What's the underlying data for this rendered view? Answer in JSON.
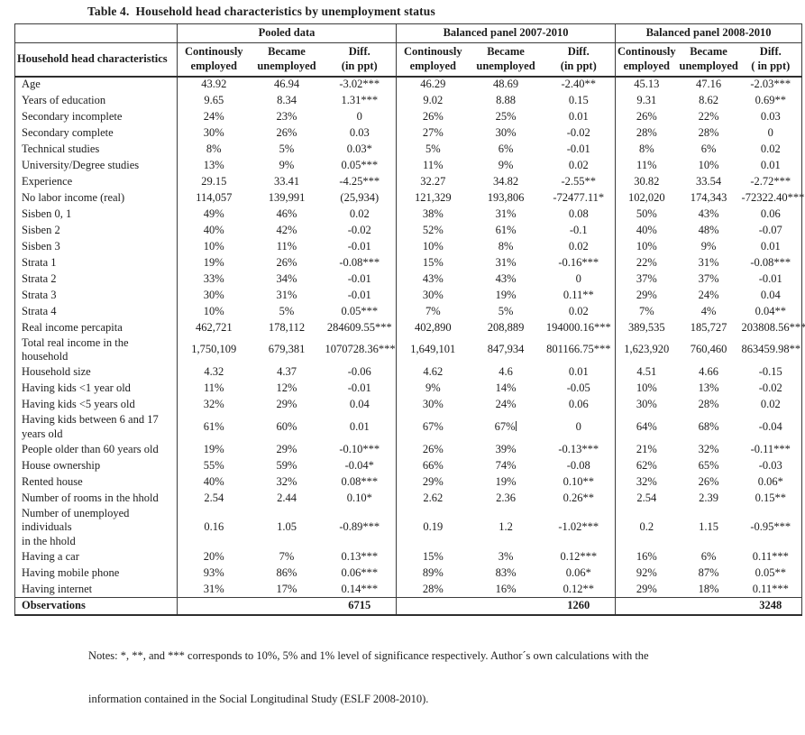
{
  "title": "Table 4.  Household head characteristics by unemployment status",
  "colors": {
    "background": "#ffffff",
    "text": "#1c1c1c",
    "border": "#3c3c3c"
  },
  "notes": [
    "Notes: *, **, and *** corresponds to 10%, 5% and 1% level of significance respectively. Author´s own calculations with the",
    "information contained in the Social Longitudinal Study (ESLF 2008-2010)."
  ],
  "table": {
    "row_header": "Household head characteristics",
    "panels": [
      {
        "label": "Pooled data",
        "columns": [
          "Continously\nemployed",
          "Became\nunemployed",
          "Diff.\n(in ppt)"
        ]
      },
      {
        "label": "Balanced panel 2007-2010",
        "columns": [
          "Continously\nemployed",
          "Became\nunemployed",
          "Diff.\n(in ppt)"
        ]
      },
      {
        "label": "Balanced panel 2008-2010",
        "columns": [
          "Continously\nemployed",
          "Became\nunemployed",
          "Diff.\n( in ppt)"
        ]
      }
    ],
    "rows": [
      {
        "label": "Age",
        "values": [
          "43.92",
          "46.94",
          "-3.02***",
          "46.29",
          "48.69",
          "-2.40**",
          "45.13",
          "47.16",
          "-2.03***"
        ]
      },
      {
        "label": "Years of education",
        "values": [
          "9.65",
          "8.34",
          "1.31***",
          "9.02",
          "8.88",
          "0.15",
          "9.31",
          "8.62",
          "0.69**"
        ]
      },
      {
        "label": "Secondary incomplete",
        "values": [
          "24%",
          "23%",
          "0",
          "26%",
          "25%",
          "0.01",
          "26%",
          "22%",
          "0.03"
        ]
      },
      {
        "label": "Secondary complete",
        "values": [
          "30%",
          "26%",
          "0.03",
          "27%",
          "30%",
          "-0.02",
          "28%",
          "28%",
          "0"
        ]
      },
      {
        "label": "Technical studies",
        "values": [
          "8%",
          "5%",
          "0.03*",
          "5%",
          "6%",
          "-0.01",
          "8%",
          "6%",
          "0.02"
        ]
      },
      {
        "label": "University/Degree studies",
        "values": [
          "13%",
          "9%",
          "0.05***",
          "11%",
          "9%",
          "0.02",
          "11%",
          "10%",
          "0.01"
        ]
      },
      {
        "label": "Experience",
        "values": [
          "29.15",
          "33.41",
          "-4.25***",
          "32.27",
          "34.82",
          "-2.55**",
          "30.82",
          "33.54",
          "-2.72***"
        ]
      },
      {
        "label": "No labor income (real)",
        "values": [
          "114,057",
          "139,991",
          "(25,934)",
          "121,329",
          "193,806",
          "-72477.11*",
          "102,020",
          "174,343",
          "-72322.40***"
        ]
      },
      {
        "label": "Sisben 0, 1",
        "values": [
          "49%",
          "46%",
          "0.02",
          "38%",
          "31%",
          "0.08",
          "50%",
          "43%",
          "0.06"
        ]
      },
      {
        "label": "Sisben 2",
        "values": [
          "40%",
          "42%",
          "-0.02",
          "52%",
          "61%",
          "-0.1",
          "40%",
          "48%",
          "-0.07"
        ]
      },
      {
        "label": "Sisben 3",
        "values": [
          "10%",
          "11%",
          "-0.01",
          "10%",
          "8%",
          "0.02",
          "10%",
          "9%",
          "0.01"
        ]
      },
      {
        "label": "Strata 1",
        "values": [
          "19%",
          "26%",
          "-0.08***",
          "15%",
          "31%",
          "-0.16***",
          "22%",
          "31%",
          "-0.08***"
        ]
      },
      {
        "label": "Strata 2",
        "values": [
          "33%",
          "34%",
          "-0.01",
          "43%",
          "43%",
          "0",
          "37%",
          "37%",
          "-0.01"
        ]
      },
      {
        "label": "Strata 3",
        "values": [
          "30%",
          "31%",
          "-0.01",
          "30%",
          "19%",
          "0.11**",
          "29%",
          "24%",
          "0.04"
        ]
      },
      {
        "label": "Strata 4",
        "values": [
          "10%",
          "5%",
          "0.05***",
          "7%",
          "5%",
          "0.02",
          "7%",
          "4%",
          "0.04**"
        ]
      },
      {
        "label": "Real income percapita",
        "values": [
          "462,721",
          "178,112",
          "284609.55***",
          "402,890",
          "208,889",
          "194000.16***",
          "389,535",
          "185,727",
          "203808.56***"
        ]
      },
      {
        "label": "Total real income in the\nhousehold",
        "values": [
          "1,750,109",
          "679,381",
          "1070728.36***",
          "1,649,101",
          "847,934",
          "801166.75***",
          "1,623,920",
          "760,460",
          "863459.98**"
        ]
      },
      {
        "label": "Household size",
        "values": [
          "4.32",
          "4.37",
          "-0.06",
          "4.62",
          "4.6",
          "0.01",
          "4.51",
          "4.66",
          "-0.15"
        ]
      },
      {
        "label": "Having kids <1 year old",
        "values": [
          "11%",
          "12%",
          "-0.01",
          "9%",
          "14%",
          "-0.05",
          "10%",
          "13%",
          "-0.02"
        ]
      },
      {
        "label": "Having kids <5 years old",
        "values": [
          "32%",
          "29%",
          "0.04",
          "30%",
          "24%",
          "0.06",
          "30%",
          "28%",
          "0.02"
        ]
      },
      {
        "label": "Having kids between 6 and 17\nyears old",
        "values": [
          "61%",
          "60%",
          "0.01",
          "67%",
          "67%",
          "0",
          "64%",
          "68%",
          "-0.04"
        ]
      },
      {
        "label": "People older than 60 years old",
        "values": [
          "19%",
          "29%",
          "-0.10***",
          "26%",
          "39%",
          "-0.13***",
          "21%",
          "32%",
          "-0.11***"
        ]
      },
      {
        "label": "House ownership",
        "values": [
          "55%",
          "59%",
          "-0.04*",
          "66%",
          "74%",
          "-0.08",
          "62%",
          "65%",
          "-0.03"
        ]
      },
      {
        "label": "Rented house",
        "values": [
          "40%",
          "32%",
          "0.08***",
          "29%",
          "19%",
          "0.10**",
          "32%",
          "26%",
          "0.06*"
        ]
      },
      {
        "label": "Number of rooms in the hhold",
        "values": [
          "2.54",
          "2.44",
          "0.10*",
          "2.62",
          "2.36",
          "0.26**",
          "2.54",
          "2.39",
          "0.15**"
        ]
      },
      {
        "label": "Number of unemployed\nindividuals\nin the hhold",
        "values": [
          "0.16",
          "1.05",
          "-0.89***",
          "0.19",
          "1.2",
          "-1.02***",
          "0.2",
          "1.15",
          "-0.95***"
        ]
      },
      {
        "label": "Having a car",
        "values": [
          "20%",
          "7%",
          "0.13***",
          "15%",
          "3%",
          "0.12***",
          "16%",
          "6%",
          "0.11***"
        ]
      },
      {
        "label": "Having mobile phone",
        "values": [
          "93%",
          "86%",
          "0.06***",
          "89%",
          "83%",
          "0.06*",
          "92%",
          "87%",
          "0.05**"
        ]
      },
      {
        "label": "Having internet",
        "values": [
          "31%",
          "17%",
          "0.14***",
          "28%",
          "16%",
          "0.12**",
          "29%",
          "18%",
          "0.11***"
        ]
      }
    ],
    "observations": {
      "label": "Observations",
      "values": [
        "6715",
        "1260",
        "3248"
      ]
    },
    "cursor": {
      "row": 20,
      "value_index": 4
    }
  }
}
